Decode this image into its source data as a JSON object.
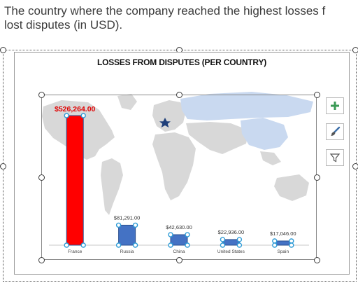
{
  "question": {
    "line1": "The country where the company reached the highest losses f",
    "line2": "lost disputes (in USD)."
  },
  "chart_data": {
    "type": "bar",
    "title": "LOSSES FROM DISPUTES (PER COUNTRY)",
    "categories": [
      "France",
      "Russia",
      "China",
      "United States",
      "Spain"
    ],
    "values": [
      526264,
      81291,
      42630,
      22936,
      17046
    ],
    "labels": [
      "$526,264.00",
      "$81,291.00",
      "$42,630.00",
      "$22,936.00",
      "$17,046.00"
    ],
    "ylim": [
      0,
      560000
    ],
    "xlabel": "",
    "ylabel": "",
    "colors": {
      "highlight": "#ff0000",
      "bar": "#4472c4",
      "highlight_label": "#e00000",
      "label": "#333333",
      "map_land": "#d8d8d8",
      "map_highlight": "#c9d9f0",
      "marker": "#1f3f7a"
    }
  },
  "toolbar": {
    "add_icon": "plus-icon",
    "style_icon": "brush-icon",
    "filter_icon": "filter-icon"
  }
}
